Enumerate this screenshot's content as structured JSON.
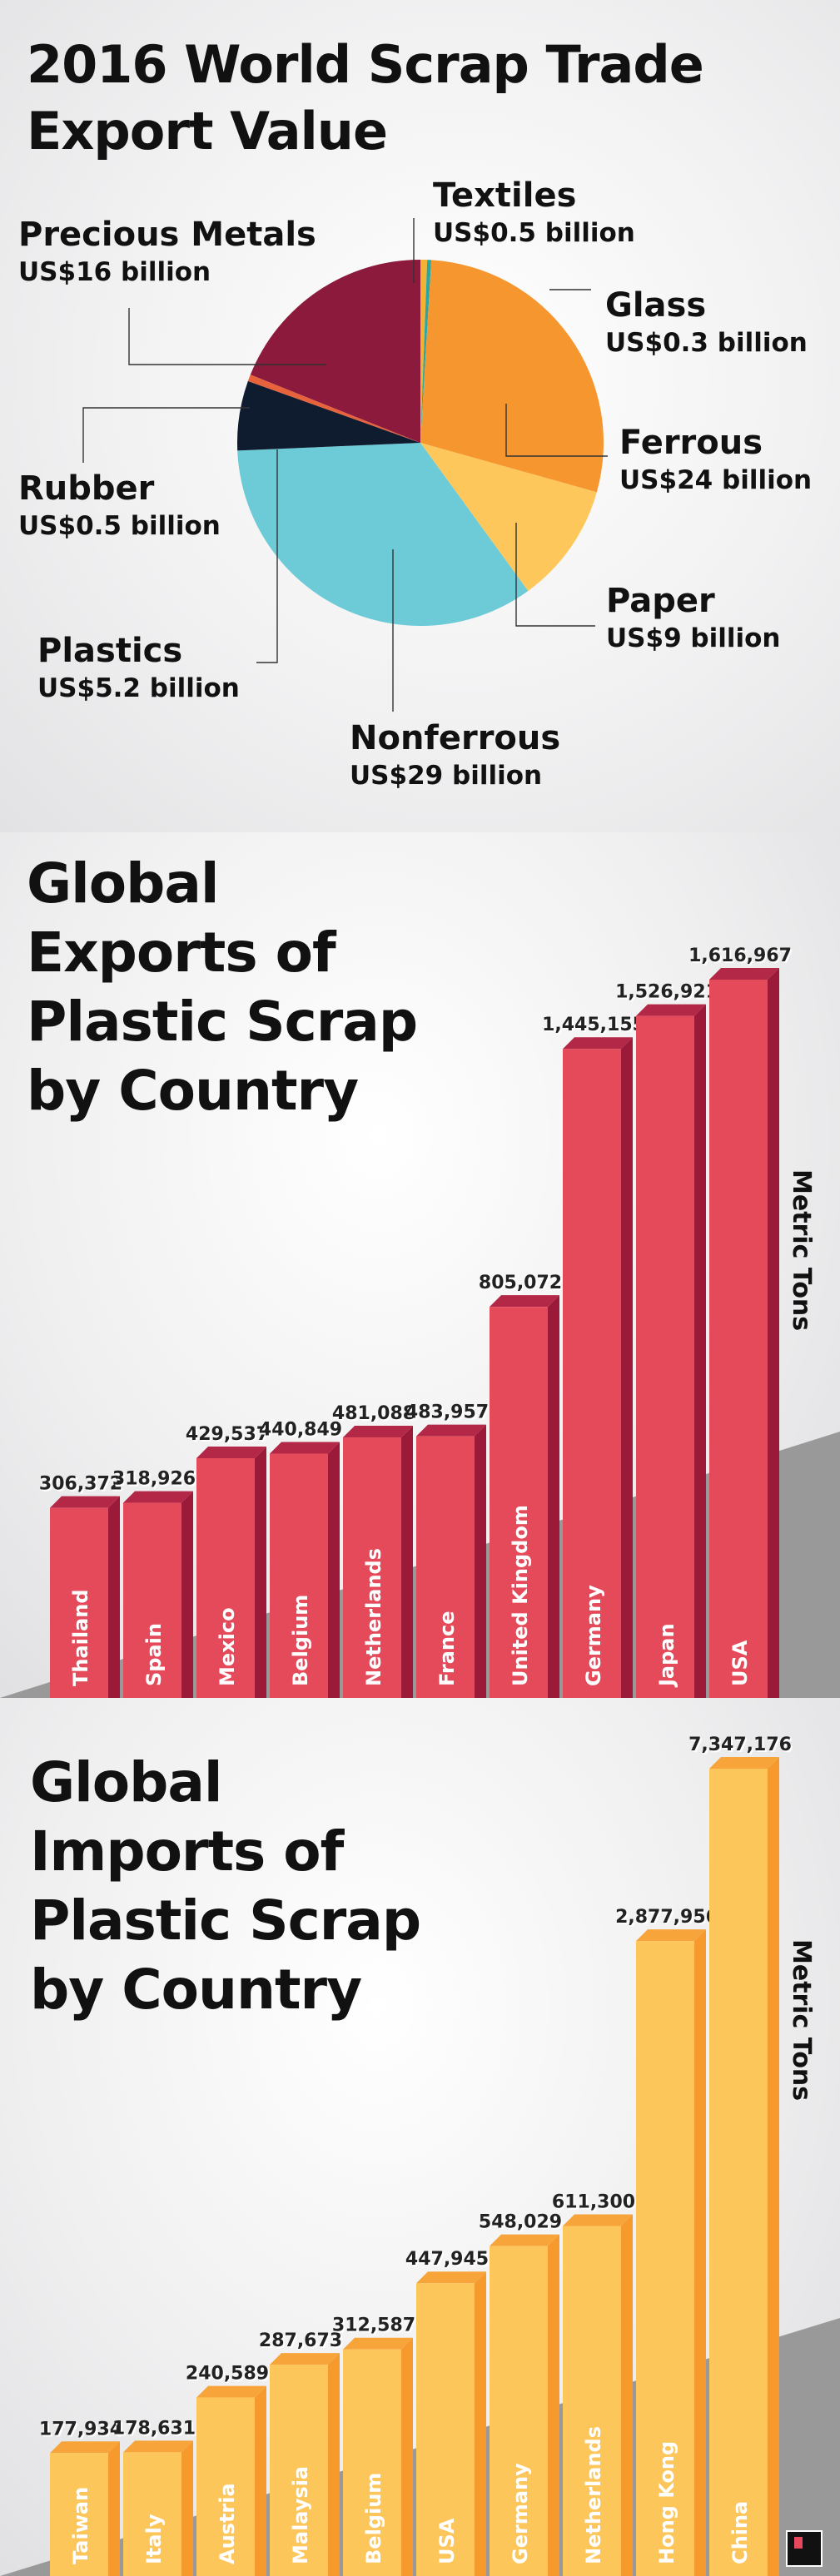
{
  "pie_section": {
    "title": "2016 World Scrap Trade\nExport Value"
  },
  "exports_section": {
    "title": "Global\nExports of\nPlastic Scrap\nby Country",
    "unit": "Metric Tons"
  },
  "imports_section": {
    "title": "Global\nImports of\nPlastic Scrap\nby Country",
    "unit": "Metric Tons"
  },
  "chart_data": [
    {
      "type": "pie",
      "title": "2016 World Scrap Trade Export Value",
      "slices": [
        {
          "label": "Textiles",
          "value_label": "US$0.5 billion",
          "value": 0.5,
          "color": "#f2b233"
        },
        {
          "label": "Glass",
          "value_label": "US$0.3 billion",
          "value": 0.3,
          "color": "#2aa7a2"
        },
        {
          "label": "Ferrous",
          "value_label": "US$24 billion",
          "value": 24,
          "color": "#f6962f"
        },
        {
          "label": "Paper",
          "value_label": "US$9 billion",
          "value": 9,
          "color": "#fdc75b"
        },
        {
          "label": "Nonferrous",
          "value_label": "US$29 billion",
          "value": 29,
          "color": "#6ccbd7"
        },
        {
          "label": "Plastics",
          "value_label": "US$5.2 billion",
          "value": 5.2,
          "color": "#0f1b2e"
        },
        {
          "label": "Rubber",
          "value_label": "US$0.5 billion",
          "value": 0.5,
          "color": "#e8633b"
        },
        {
          "label": "Precious Metals",
          "value_label": "US$16 billion",
          "value": 16,
          "color": "#8b1a3c"
        }
      ]
    },
    {
      "type": "bar",
      "title": "Global Exports of Plastic Scrap by Country",
      "ylabel": "Metric Tons",
      "categories": [
        "Thailand",
        "Spain",
        "Mexico",
        "Belgium",
        "Netherlands",
        "France",
        "United Kingdom",
        "Germany",
        "Japan",
        "USA"
      ],
      "values": [
        306372,
        318926,
        429537,
        440849,
        481088,
        483957,
        805072,
        1445155,
        1526921,
        1616967
      ],
      "value_labels": [
        "306,372",
        "318,926",
        "429,537",
        "440,849",
        "481,088",
        "483,957",
        "805,072",
        "1,445,155",
        "1,526,921",
        "1,616,967"
      ],
      "colors": {
        "front": "#e54a5b",
        "side": "#9b1a3a",
        "top": "#b32846"
      }
    },
    {
      "type": "bar",
      "title": "Global Imports of Plastic Scrap by Country",
      "ylabel": "Metric Tons",
      "categories": [
        "Taiwan",
        "Italy",
        "Austria",
        "Malaysia",
        "Belgium",
        "USA",
        "Germany",
        "Netherlands",
        "Hong Kong",
        "China"
      ],
      "values": [
        177934,
        178631,
        240589,
        287673,
        312587,
        447945,
        548029,
        611300,
        2877956,
        7347176
      ],
      "value_labels": [
        "177,934",
        "178,631",
        "240,589",
        "287,673",
        "312,587",
        "447,945",
        "548,029",
        "611,300",
        "2,877,956",
        "7,347,176"
      ],
      "colors": {
        "front": "#fdc65a",
        "side": "#f69a2e",
        "top": "#f7a43a"
      }
    }
  ]
}
